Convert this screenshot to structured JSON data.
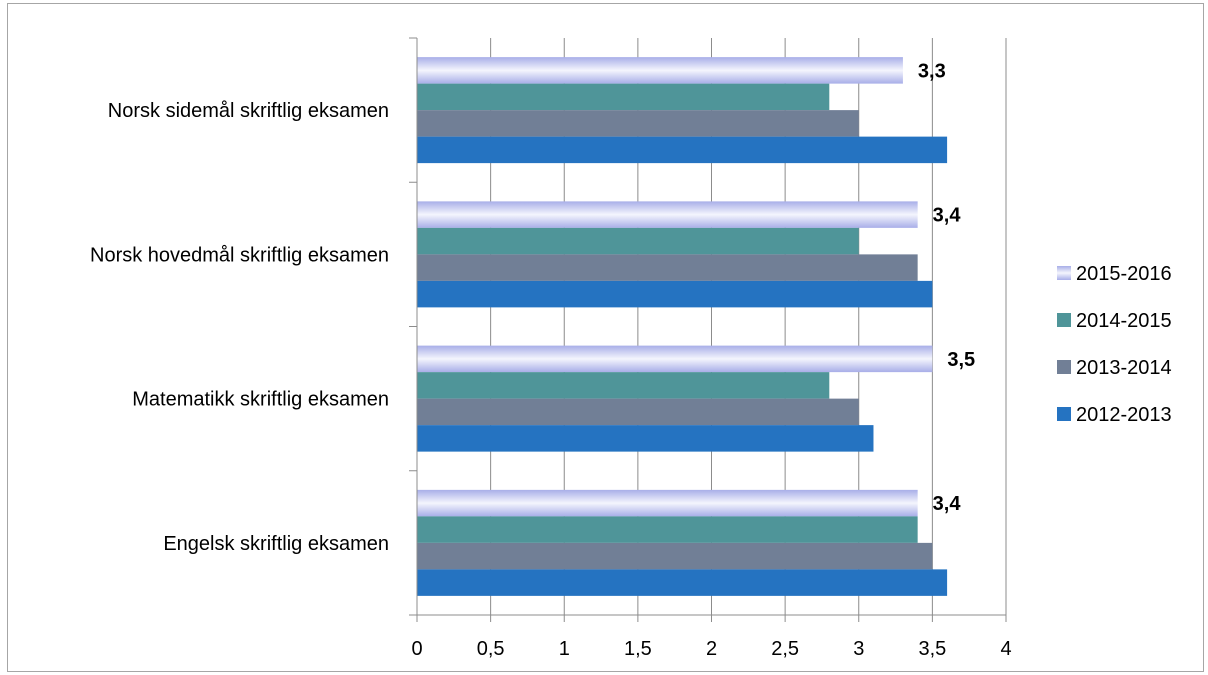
{
  "chart_data": {
    "type": "bar",
    "orientation": "horizontal",
    "title": "",
    "xlabel": "",
    "ylabel": "",
    "xlim": [
      0,
      4
    ],
    "x_ticks": [
      "0",
      "0,5",
      "1",
      "1,5",
      "2",
      "2,5",
      "3",
      "3,5",
      "4"
    ],
    "x_tick_values": [
      0,
      0.5,
      1,
      1.5,
      2,
      2.5,
      3,
      3.5,
      4
    ],
    "grid": "vertical",
    "legend": "right",
    "categories": [
      "Norsk sidemål skriftlig eksamen",
      "Norsk hovedmål skriftlig eksamen",
      "Matematikk skriftlig eksamen",
      "Engelsk skriftlig eksamen"
    ],
    "series": [
      {
        "name": "2015-2016",
        "color": "#c3c8ef",
        "values": [
          3.3,
          3.4,
          3.5,
          3.4
        ],
        "data_labels": [
          "3,3",
          "3,4",
          "3,5",
          "3,4"
        ]
      },
      {
        "name": "2014-2015",
        "color": "#4f9599",
        "values": [
          2.8,
          3.0,
          2.8,
          3.4
        ]
      },
      {
        "name": "2013-2014",
        "color": "#717f96",
        "values": [
          3.0,
          3.4,
          3.0,
          3.5
        ]
      },
      {
        "name": "2012-2013",
        "color": "#2573c1",
        "values": [
          3.6,
          3.5,
          3.1,
          3.6
        ]
      }
    ]
  }
}
